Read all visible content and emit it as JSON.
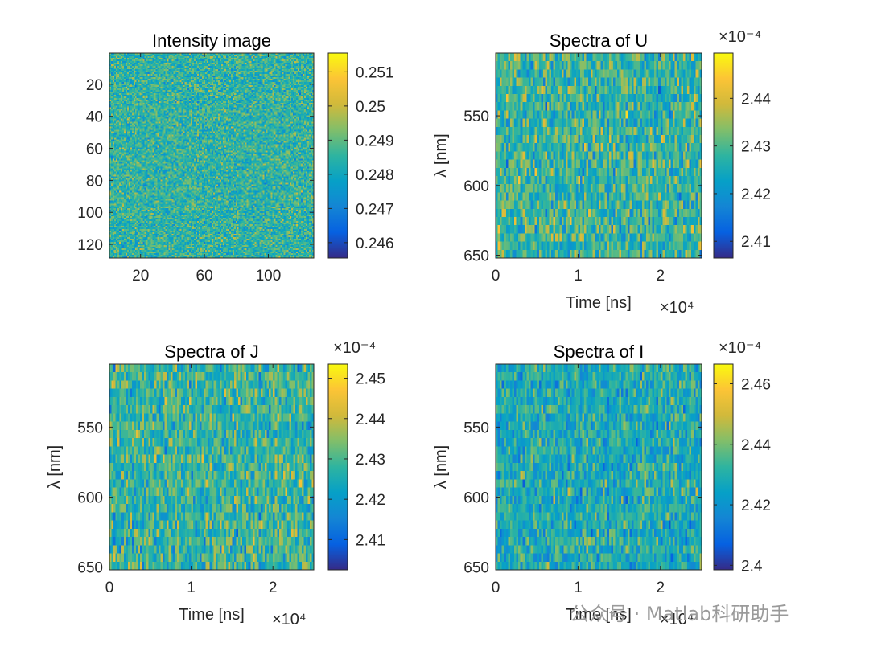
{
  "figure": {
    "watermark": "公众号 · Matlab科研助手"
  },
  "chart_data": [
    {
      "id": "intensity",
      "type": "heatmap",
      "title": "Intensity image",
      "xlabel": "",
      "ylabel": "",
      "xlim": [
        0.5,
        128.5
      ],
      "ylim": [
        0.5,
        128.5
      ],
      "y_reversed": true,
      "xticks": [
        20,
        60,
        100
      ],
      "xtick_labels": [
        "20",
        "60",
        "100"
      ],
      "yticks": [
        20,
        40,
        60,
        80,
        100,
        120
      ],
      "ytick_labels": [
        "20",
        "40",
        "60",
        "80",
        "100",
        "120"
      ],
      "grid_size": [
        128,
        128
      ],
      "colorbar": {
        "range": [
          0.24555,
          0.25155
        ],
        "ticks": [
          0.246,
          0.247,
          0.248,
          0.249,
          0.25,
          0.251
        ],
        "tick_labels": [
          "0.246",
          "0.247",
          "0.248",
          "0.249",
          "0.25",
          "0.251"
        ],
        "multiplier": ""
      },
      "value_mean": 0.2485,
      "value_spread": 0.0009
    },
    {
      "id": "spectra_u",
      "type": "heatmap",
      "title": "Spectra of U",
      "xlabel": "Time [ns]",
      "ylabel": "λ [nm]",
      "xlim": [
        0,
        25000
      ],
      "ylim": [
        505,
        652
      ],
      "y_reversed": true,
      "xticks": [
        0,
        10000,
        20000
      ],
      "xtick_labels": [
        "0",
        "1",
        "2"
      ],
      "x_multiplier": "×10⁴",
      "yticks": [
        550,
        600,
        650
      ],
      "ytick_labels": [
        "550",
        "600",
        "650"
      ],
      "grid_size": [
        100,
        25
      ],
      "colorbar": {
        "range": [
          2.4065,
          2.4495
        ],
        "ticks": [
          2.41,
          2.42,
          2.43,
          2.44
        ],
        "tick_labels": [
          "2.41",
          "2.42",
          "2.43",
          "2.44"
        ],
        "multiplier": "×10⁻⁴"
      },
      "value_mean": 2.428,
      "value_spread": 0.008
    },
    {
      "id": "spectra_j",
      "type": "heatmap",
      "title": "Spectra of J",
      "xlabel": "Time [ns]",
      "ylabel": "λ [nm]",
      "xlim": [
        0,
        25000
      ],
      "ylim": [
        505,
        652
      ],
      "y_reversed": true,
      "xticks": [
        0,
        10000,
        20000
      ],
      "xtick_labels": [
        "0",
        "1",
        "2"
      ],
      "x_multiplier": "×10⁴",
      "yticks": [
        550,
        600,
        650
      ],
      "ytick_labels": [
        "550",
        "600",
        "650"
      ],
      "grid_size": [
        100,
        25
      ],
      "colorbar": {
        "range": [
          2.4025,
          2.4535
        ],
        "ticks": [
          2.41,
          2.42,
          2.43,
          2.44,
          2.45
        ],
        "tick_labels": [
          "2.41",
          "2.42",
          "2.43",
          "2.44",
          "2.45"
        ],
        "multiplier": "×10⁻⁴"
      },
      "value_mean": 2.428,
      "value_spread": 0.009
    },
    {
      "id": "spectra_i",
      "type": "heatmap",
      "title": "Spectra of I",
      "xlabel": "Time [ns]",
      "ylabel": "λ [nm]",
      "xlim": [
        0,
        25000
      ],
      "ylim": [
        505,
        652
      ],
      "y_reversed": true,
      "xticks": [
        0,
        10000,
        20000
      ],
      "xtick_labels": [
        "0",
        "1",
        "2"
      ],
      "x_multiplier": "×10⁴",
      "yticks": [
        550,
        600,
        650
      ],
      "ytick_labels": [
        "550",
        "600",
        "650"
      ],
      "grid_size": [
        100,
        25
      ],
      "colorbar": {
        "range": [
          2.3985,
          2.4665
        ],
        "ticks": [
          2.4,
          2.42,
          2.44,
          2.46
        ],
        "tick_labels": [
          "2.4",
          "2.42",
          "2.44",
          "2.46"
        ],
        "multiplier": "×10⁻⁴"
      },
      "value_mean": 2.428,
      "value_spread": 0.011
    }
  ]
}
